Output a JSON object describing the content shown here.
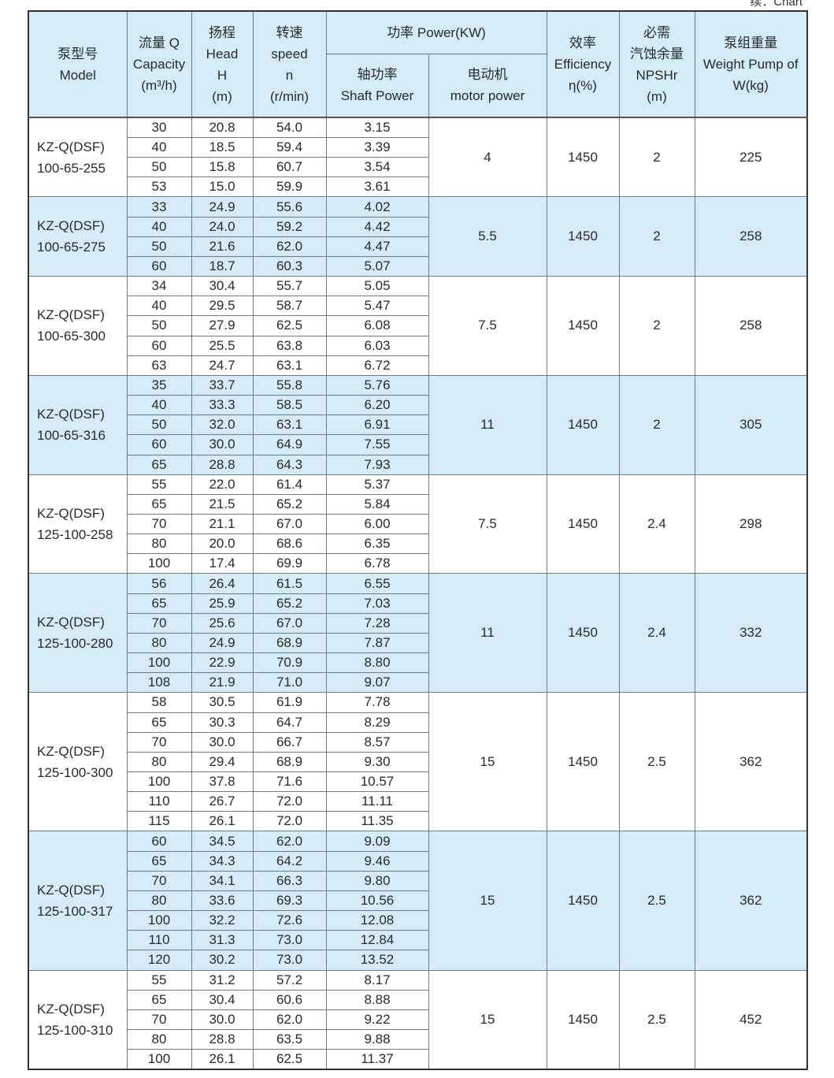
{
  "caption": "续：Chart",
  "header": {
    "model": [
      "泵型号",
      "Model"
    ],
    "capacity": [
      "流量 Q",
      "Capacity",
      "(m³/h)"
    ],
    "head": [
      "扬程",
      "Head",
      "H",
      "(m)"
    ],
    "speed": [
      "转速",
      "speed",
      "n",
      "(r/min)"
    ],
    "power": "功率 Power(KW)",
    "shaft_power": [
      "轴功率",
      "Shaft Power"
    ],
    "motor_power": [
      "电动机",
      "motor power"
    ],
    "efficiency": [
      "效率",
      "Efficiency",
      "η(%)"
    ],
    "npshr": [
      "必需",
      "汽蚀余量",
      "NPSHr",
      "(m)"
    ],
    "weight": [
      "泵组重量",
      "Weight Pump of",
      "W(kg)"
    ]
  },
  "colors": {
    "header_bg": "#d3ecf8",
    "alt_group_bg": "#d5ecf8"
  },
  "groups": [
    {
      "model": [
        "KZ-Q(DSF)",
        "100-65-255"
      ],
      "motor": "4",
      "efficiency": "1450",
      "npshr": "2",
      "weight": "225",
      "highlight": false,
      "rows": [
        [
          "30",
          "20.8",
          "54.0",
          "3.15"
        ],
        [
          "40",
          "18.5",
          "59.4",
          "3.39"
        ],
        [
          "50",
          "15.8",
          "60.7",
          "3.54"
        ],
        [
          "53",
          "15.0",
          "59.9",
          "3.61"
        ]
      ]
    },
    {
      "model": [
        "KZ-Q(DSF)",
        "100-65-275"
      ],
      "motor": "5.5",
      "efficiency": "1450",
      "npshr": "2",
      "weight": "258",
      "highlight": true,
      "rows": [
        [
          "33",
          "24.9",
          "55.6",
          "4.02"
        ],
        [
          "40",
          "24.0",
          "59.2",
          "4.42"
        ],
        [
          "50",
          "21.6",
          "62.0",
          "4.47"
        ],
        [
          "60",
          "18.7",
          "60.3",
          "5.07"
        ]
      ]
    },
    {
      "model": [
        "KZ-Q(DSF)",
        "100-65-300"
      ],
      "motor": "7.5",
      "efficiency": "1450",
      "npshr": "2",
      "weight": "258",
      "highlight": false,
      "rows": [
        [
          "34",
          "30.4",
          "55.7",
          "5.05"
        ],
        [
          "40",
          "29.5",
          "58.7",
          "5.47"
        ],
        [
          "50",
          "27.9",
          "62.5",
          "6.08"
        ],
        [
          "60",
          "25.5",
          "63.8",
          "6.03"
        ],
        [
          "63",
          "24.7",
          "63.1",
          "6.72"
        ]
      ]
    },
    {
      "model": [
        "KZ-Q(DSF)",
        "100-65-316"
      ],
      "motor": "11",
      "efficiency": "1450",
      "npshr": "2",
      "weight": "305",
      "highlight": true,
      "rows": [
        [
          "35",
          "33.7",
          "55.8",
          "5.76"
        ],
        [
          "40",
          "33.3",
          "58.5",
          "6.20"
        ],
        [
          "50",
          "32.0",
          "63.1",
          "6.91"
        ],
        [
          "60",
          "30.0",
          "64.9",
          "7.55"
        ],
        [
          "65",
          "28.8",
          "64.3",
          "7.93"
        ]
      ]
    },
    {
      "model": [
        "KZ-Q(DSF)",
        "125-100-258"
      ],
      "motor": "7.5",
      "efficiency": "1450",
      "npshr": "2.4",
      "weight": "298",
      "highlight": false,
      "rows": [
        [
          "55",
          "22.0",
          "61.4",
          "5.37"
        ],
        [
          "65",
          "21.5",
          "65.2",
          "5.84"
        ],
        [
          "70",
          "21.1",
          "67.0",
          "6.00"
        ],
        [
          "80",
          "20.0",
          "68.6",
          "6.35"
        ],
        [
          "100",
          "17.4",
          "69.9",
          "6.78"
        ]
      ]
    },
    {
      "model": [
        "KZ-Q(DSF)",
        "125-100-280"
      ],
      "motor": "11",
      "efficiency": "1450",
      "npshr": "2.4",
      "weight": "332",
      "highlight": true,
      "rows": [
        [
          "56",
          "26.4",
          "61.5",
          "6.55"
        ],
        [
          "65",
          "25.9",
          "65.2",
          "7.03"
        ],
        [
          "70",
          "25.6",
          "67.0",
          "7.28"
        ],
        [
          "80",
          "24.9",
          "68.9",
          "7.87"
        ],
        [
          "100",
          "22.9",
          "70.9",
          "8.80"
        ],
        [
          "108",
          "21.9",
          "71.0",
          "9.07"
        ]
      ]
    },
    {
      "model": [
        "KZ-Q(DSF)",
        "125-100-300"
      ],
      "motor": "15",
      "efficiency": "1450",
      "npshr": "2.5",
      "weight": "362",
      "highlight": false,
      "rows": [
        [
          "58",
          "30.5",
          "61.9",
          "7.78"
        ],
        [
          "65",
          "30.3",
          "64.7",
          "8.29"
        ],
        [
          "70",
          "30.0",
          "66.7",
          "8.57"
        ],
        [
          "80",
          "29.4",
          "68.9",
          "9.30"
        ],
        [
          "100",
          "37.8",
          "71.6",
          "10.57"
        ],
        [
          "110",
          "26.7",
          "72.0",
          "11.11"
        ],
        [
          "115",
          "26.1",
          "72.0",
          "11.35"
        ]
      ]
    },
    {
      "model": [
        "KZ-Q(DSF)",
        "125-100-317"
      ],
      "motor": "15",
      "efficiency": "1450",
      "npshr": "2.5",
      "weight": "362",
      "highlight": true,
      "rows": [
        [
          "60",
          "34.5",
          "62.0",
          "9.09"
        ],
        [
          "65",
          "34.3",
          "64.2",
          "9.46"
        ],
        [
          "70",
          "34.1",
          "66.3",
          "9.80"
        ],
        [
          "80",
          "33.6",
          "69.3",
          "10.56"
        ],
        [
          "100",
          "32.2",
          "72.6",
          "12.08"
        ],
        [
          "110",
          "31.3",
          "73.0",
          "12.84"
        ],
        [
          "120",
          "30.2",
          "73.0",
          "13.52"
        ]
      ]
    },
    {
      "model": [
        "KZ-Q(DSF)",
        "125-100-310"
      ],
      "motor": "15",
      "efficiency": "1450",
      "npshr": "2.5",
      "weight": "452",
      "highlight": false,
      "rows": [
        [
          "55",
          "31.2",
          "57.2",
          "8.17"
        ],
        [
          "65",
          "30.4",
          "60.6",
          "8.88"
        ],
        [
          "70",
          "30.0",
          "62.0",
          "9.22"
        ],
        [
          "80",
          "28.8",
          "63.5",
          "9.88"
        ],
        [
          "100",
          "26.1",
          "62.5",
          "11.37"
        ]
      ]
    }
  ]
}
